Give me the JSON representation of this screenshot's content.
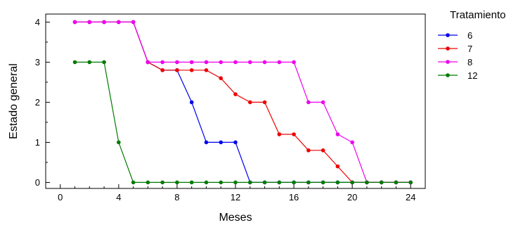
{
  "chart_data": {
    "type": "line",
    "xlabel": "Meses",
    "ylabel": "Estado general",
    "xlim": [
      -1,
      25
    ],
    "ylim": [
      -0.15,
      4.2
    ],
    "x_ticks": [
      0,
      4,
      8,
      12,
      16,
      20,
      24
    ],
    "y_ticks": [
      0,
      1,
      2,
      3,
      4
    ],
    "legend": {
      "title": "Tratamiento",
      "placement": "right"
    },
    "x": [
      1,
      2,
      3,
      4,
      5,
      6,
      7,
      8,
      9,
      10,
      11,
      12,
      13,
      14,
      15,
      16,
      17,
      18,
      19,
      20,
      21,
      22,
      23,
      24
    ],
    "series": [
      {
        "name": "6",
        "color": "#0000ee",
        "values": [
          4,
          4,
          4,
          4,
          4,
          3,
          2.8,
          2.8,
          2,
          1,
          1,
          1,
          0,
          0,
          0,
          0,
          0,
          0,
          0,
          0,
          0,
          0,
          0,
          0
        ]
      },
      {
        "name": "7",
        "color": "#ee0000",
        "values": [
          4,
          4,
          4,
          4,
          4,
          3,
          2.8,
          2.8,
          2.8,
          2.8,
          2.6,
          2.2,
          2,
          2,
          1.2,
          1.2,
          0.8,
          0.8,
          0.4,
          0,
          0,
          0,
          0,
          0
        ]
      },
      {
        "name": "8",
        "color": "#ee00ee",
        "values": [
          4,
          4,
          4,
          4,
          4,
          3,
          3,
          3,
          3,
          3,
          3,
          3,
          3,
          3,
          3,
          3,
          2,
          2,
          1.2,
          1,
          0,
          0,
          0,
          0
        ]
      },
      {
        "name": "12",
        "color": "#007a00",
        "values": [
          3,
          3,
          3,
          1,
          0,
          0,
          0,
          0,
          0,
          0,
          0,
          0,
          0,
          0,
          0,
          0,
          0,
          0,
          0,
          0,
          0,
          0,
          0,
          0
        ]
      }
    ]
  }
}
